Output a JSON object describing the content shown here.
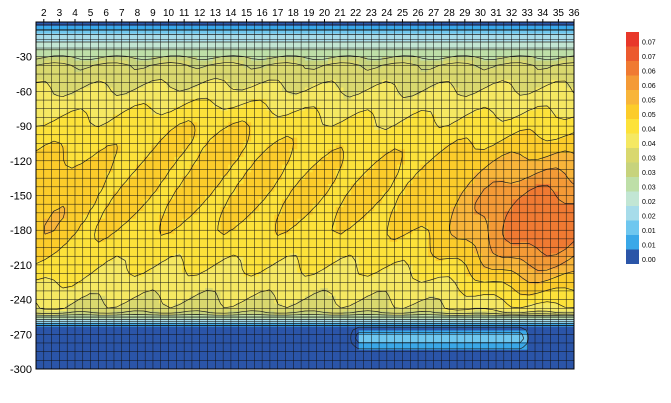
{
  "chart_data": {
    "type": "heatmap",
    "title": "",
    "xlabel": "",
    "ylabel": "",
    "x_ticks": [
      2,
      3,
      4,
      5,
      6,
      7,
      8,
      9,
      10,
      11,
      12,
      13,
      14,
      15,
      16,
      17,
      18,
      19,
      20,
      21,
      22,
      23,
      24,
      25,
      26,
      27,
      28,
      29,
      30,
      31,
      32,
      33,
      34,
      35,
      36
    ],
    "y_ticks": [
      -30,
      -60,
      -90,
      -120,
      -150,
      -180,
      -210,
      -240,
      -270,
      -300
    ],
    "xlim": [
      1.5,
      36
    ],
    "ylim": [
      -300,
      0
    ],
    "grid": true,
    "contour_lines": true,
    "legend_position": "right",
    "legend": [
      {
        "label": "0.07",
        "color": "#e8382a"
      },
      {
        "label": "0.07",
        "color": "#ec5a2e"
      },
      {
        "label": "0.06",
        "color": "#f07a32"
      },
      {
        "label": "0.06",
        "color": "#f49a36"
      },
      {
        "label": "0.05",
        "color": "#f8b53a"
      },
      {
        "label": "0.05",
        "color": "#fccc2a"
      },
      {
        "label": "0.04",
        "color": "#fde23a"
      },
      {
        "label": "0.04",
        "color": "#f5e862"
      },
      {
        "label": "0.03",
        "color": "#d9d86e"
      },
      {
        "label": "0.03",
        "color": "#c7d37c"
      },
      {
        "label": "0.03",
        "color": "#bedfa8"
      },
      {
        "label": "0.02",
        "color": "#c2e6d4"
      },
      {
        "label": "0.02",
        "color": "#a7dcea"
      },
      {
        "label": "0.01",
        "color": "#6fc7ef"
      },
      {
        "label": "0.01",
        "color": "#3aa8e8"
      },
      {
        "label": "0.00",
        "color": "#2b55a8"
      }
    ],
    "levels": [
      0.0,
      0.005,
      0.01,
      0.015,
      0.02,
      0.025,
      0.03,
      0.035,
      0.04,
      0.045,
      0.05,
      0.055,
      0.06,
      0.065,
      0.07,
      0.075
    ]
  }
}
